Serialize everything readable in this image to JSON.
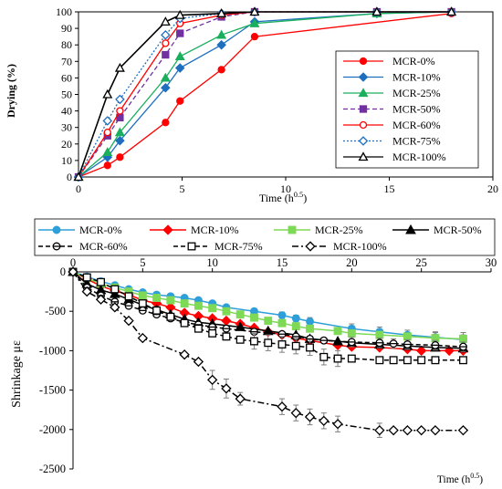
{
  "chart_data": [
    {
      "type": "line",
      "xlabel": "Time (h^0.5)",
      "xlabel_main": "Time (h",
      "xlabel_sup": "0.5",
      "xlabel_end": ")",
      "ylabel": "Drying (%)",
      "xlim": [
        0,
        20
      ],
      "ylim": [
        0,
        100
      ],
      "xticks": [
        0,
        5,
        10,
        15,
        20
      ],
      "yticks": [
        0,
        10,
        20,
        30,
        40,
        50,
        60,
        70,
        80,
        90,
        100
      ],
      "grid": false,
      "legend_position": "right",
      "series": [
        {
          "name": "MCR-0%",
          "color": "#ff0000",
          "marker": "circle-filled",
          "dash": "solid",
          "x": [
            0,
            1.4,
            2.0,
            4.2,
            4.9,
            6.9,
            8.5,
            18.0,
            18.0
          ],
          "y": [
            0,
            7,
            12,
            33,
            46,
            65,
            85,
            99,
            100
          ]
        },
        {
          "name": "MCR-10%",
          "color": "#1f6fbf",
          "marker": "diamond-filled",
          "dash": "solid",
          "x": [
            0,
            1.4,
            2.0,
            4.2,
            4.9,
            6.9,
            8.5,
            14.4,
            18.0
          ],
          "y": [
            0,
            12,
            22,
            54,
            66,
            80,
            94,
            99,
            100
          ]
        },
        {
          "name": "MCR-25%",
          "color": "#1aaf5d",
          "marker": "triangle-filled",
          "dash": "solid",
          "x": [
            0,
            1.4,
            2.0,
            4.2,
            4.9,
            6.9,
            8.5,
            14.4,
            18.0
          ],
          "y": [
            0,
            15,
            27,
            60,
            73,
            86,
            93,
            99,
            100
          ]
        },
        {
          "name": "MCR-50%",
          "color": "#7030a0",
          "marker": "square-filled",
          "dash": "dash",
          "x": [
            0,
            1.4,
            2.0,
            4.2,
            4.9,
            6.9,
            8.5,
            14.4,
            18.0
          ],
          "y": [
            0,
            25,
            36,
            74,
            87,
            97,
            100,
            100,
            100
          ]
        },
        {
          "name": "MCR-60%",
          "color": "#ff0000",
          "marker": "circle-open",
          "dash": "solid",
          "x": [
            0,
            1.4,
            2.0,
            4.2,
            4.9,
            6.9,
            8.5,
            14.4,
            18.0
          ],
          "y": [
            0,
            27,
            40,
            81,
            93,
            98,
            100,
            100,
            100
          ]
        },
        {
          "name": "MCR-75%",
          "color": "#1f6fbf",
          "marker": "diamond-open",
          "dash": "dot",
          "x": [
            0,
            1.4,
            2.0,
            4.2,
            4.9,
            6.9,
            8.5,
            14.4,
            18.0
          ],
          "y": [
            0,
            34,
            47,
            86,
            96,
            99,
            100,
            100,
            100
          ]
        },
        {
          "name": "MCR-100%",
          "color": "#000000",
          "marker": "triangle-open",
          "dash": "solid",
          "x": [
            0,
            1.4,
            2.0,
            4.2,
            4.9,
            6.9,
            8.5,
            14.4,
            18.0
          ],
          "y": [
            0,
            50,
            66,
            94,
            98,
            99,
            100,
            100,
            100
          ]
        }
      ]
    },
    {
      "type": "line",
      "xlabel": "Time (h^0.5)",
      "xlabel_main": "Time (h",
      "xlabel_sup": "0.5",
      "xlabel_end": ")",
      "ylabel": "Shrinkage με",
      "xlim": [
        0,
        30
      ],
      "ylim": [
        -2500,
        0
      ],
      "xticks": [
        0,
        5,
        10,
        15,
        20,
        25,
        30
      ],
      "yticks": [
        0,
        -500,
        -1000,
        -1500,
        -2000,
        -2500
      ],
      "grid": false,
      "legend_position": "top",
      "series": [
        {
          "name": "MCR-0%",
          "color": "#2e9fd8",
          "marker": "circle-filled",
          "dash": "solid",
          "x": [
            0,
            1,
            2,
            3,
            4,
            5,
            6,
            7,
            8,
            9,
            10,
            11,
            13,
            15,
            16,
            17,
            20,
            22,
            24,
            26,
            28
          ],
          "y": [
            0,
            -60,
            -120,
            -170,
            -220,
            -260,
            -290,
            -310,
            -330,
            -360,
            -400,
            -450,
            -500,
            -550,
            -590,
            -630,
            -720,
            -760,
            -800,
            -830,
            -860
          ],
          "err": [
            0,
            0,
            0,
            0,
            0,
            0,
            0,
            0,
            0,
            0,
            0,
            0,
            0,
            40,
            40,
            50,
            60,
            60,
            60,
            60,
            60
          ]
        },
        {
          "name": "MCR-10%",
          "color": "#ff0000",
          "marker": "diamond-filled",
          "dash": "solid",
          "x": [
            0,
            1,
            2,
            3,
            4,
            5,
            6,
            7,
            8,
            9,
            10,
            11,
            12,
            13,
            14,
            15,
            16,
            17,
            19,
            20,
            22,
            24,
            25,
            27,
            28
          ],
          "y": [
            0,
            -90,
            -180,
            -240,
            -290,
            -360,
            -400,
            -450,
            -520,
            -560,
            -590,
            -620,
            -660,
            -710,
            -760,
            -800,
            -840,
            -870,
            -930,
            -950,
            -960,
            -980,
            -1000,
            -1000,
            -1000
          ],
          "err": [
            0,
            0,
            0,
            0,
            0,
            0,
            0,
            0,
            0,
            0,
            0,
            0,
            0,
            0,
            0,
            0,
            0,
            0,
            0,
            0,
            0,
            0,
            0,
            0,
            0
          ]
        },
        {
          "name": "MCR-25%",
          "color": "#7ed957",
          "marker": "square-filled",
          "dash": "solid",
          "x": [
            0,
            1,
            2,
            3,
            4,
            5,
            6,
            7,
            8,
            9,
            10,
            11,
            12,
            13,
            14,
            15,
            16,
            17,
            19,
            20,
            22,
            24,
            26,
            28
          ],
          "y": [
            0,
            -80,
            -150,
            -200,
            -250,
            -300,
            -330,
            -360,
            -400,
            -430,
            -460,
            -500,
            -540,
            -580,
            -620,
            -650,
            -690,
            -720,
            -750,
            -780,
            -800,
            -820,
            -840,
            -850
          ],
          "err": [
            0,
            0,
            0,
            0,
            0,
            0,
            0,
            0,
            0,
            0,
            0,
            0,
            0,
            0,
            0,
            0,
            0,
            0,
            0,
            0,
            0,
            0,
            80,
            80
          ]
        },
        {
          "name": "MCR-50%",
          "color": "#000000",
          "marker": "triangle-filled",
          "dash": "solid",
          "x": [
            0,
            1,
            2,
            3,
            4,
            5,
            6,
            7,
            8,
            9,
            10,
            12,
            14,
            16,
            17,
            19,
            20,
            22,
            24,
            26,
            28
          ],
          "y": [
            0,
            -150,
            -230,
            -280,
            -350,
            -420,
            -480,
            -540,
            -600,
            -640,
            -660,
            -700,
            -750,
            -800,
            -850,
            -880,
            -900,
            -920,
            -940,
            -960,
            -970
          ],
          "err": [
            0,
            0,
            0,
            0,
            0,
            0,
            0,
            0,
            0,
            0,
            0,
            0,
            0,
            0,
            0,
            0,
            0,
            0,
            0,
            0,
            0
          ]
        },
        {
          "name": "MCR-60%",
          "color": "#000000",
          "marker": "theta-open",
          "dash": "dash",
          "x": [
            0,
            1,
            2,
            3,
            4,
            5,
            6,
            7,
            8,
            9,
            10,
            11,
            13,
            15,
            16,
            17,
            18,
            20,
            22,
            23,
            24,
            26,
            28
          ],
          "y": [
            0,
            -200,
            -300,
            -380,
            -430,
            -490,
            -540,
            -590,
            -640,
            -670,
            -700,
            -720,
            -760,
            -790,
            -820,
            -850,
            -870,
            -890,
            -900,
            -910,
            -920,
            -930,
            -950
          ],
          "err": [
            0,
            0,
            0,
            0,
            0,
            0,
            0,
            0,
            0,
            0,
            0,
            0,
            0,
            0,
            0,
            0,
            0,
            60,
            60,
            60,
            60,
            60,
            60
          ]
        },
        {
          "name": "MCR-75%",
          "color": "#000000",
          "marker": "square-open",
          "dash": "dash",
          "x": [
            0,
            1,
            2,
            3,
            4,
            5,
            6,
            7,
            8,
            9,
            10,
            11,
            12,
            13,
            14,
            15,
            16,
            17,
            18,
            19,
            20,
            22,
            23,
            24,
            25,
            26,
            28
          ],
          "y": [
            0,
            -70,
            -130,
            -220,
            -310,
            -400,
            -490,
            -570,
            -650,
            -720,
            -780,
            -820,
            -860,
            -880,
            -900,
            -920,
            -940,
            -960,
            -1080,
            -1100,
            -1100,
            -1120,
            -1120,
            -1120,
            -1120,
            -1120,
            -1120
          ],
          "err": [
            0,
            0,
            0,
            0,
            0,
            0,
            0,
            0,
            0,
            0,
            0,
            0,
            0,
            100,
            100,
            100,
            100,
            100,
            100,
            100,
            0,
            0,
            0,
            0,
            0,
            0,
            0
          ]
        },
        {
          "name": "MCR-100%",
          "color": "#000000",
          "marker": "diamond-open",
          "dash": "dashdot",
          "x": [
            0,
            1,
            2,
            3,
            4,
            5,
            8,
            9,
            10,
            11,
            12,
            15,
            16,
            17,
            18,
            19,
            22,
            23,
            24,
            25,
            26,
            28
          ],
          "y": [
            0,
            -250,
            -350,
            -450,
            -620,
            -840,
            -1050,
            -1140,
            -1370,
            -1480,
            -1610,
            -1710,
            -1790,
            -1840,
            -1890,
            -1930,
            -2010,
            -2010,
            -2010,
            -2010,
            -2010,
            -2010
          ],
          "err": [
            0,
            0,
            0,
            0,
            0,
            0,
            0,
            0,
            120,
            120,
            80,
            100,
            100,
            100,
            100,
            100,
            90,
            0,
            0,
            0,
            0,
            0
          ]
        }
      ]
    }
  ]
}
